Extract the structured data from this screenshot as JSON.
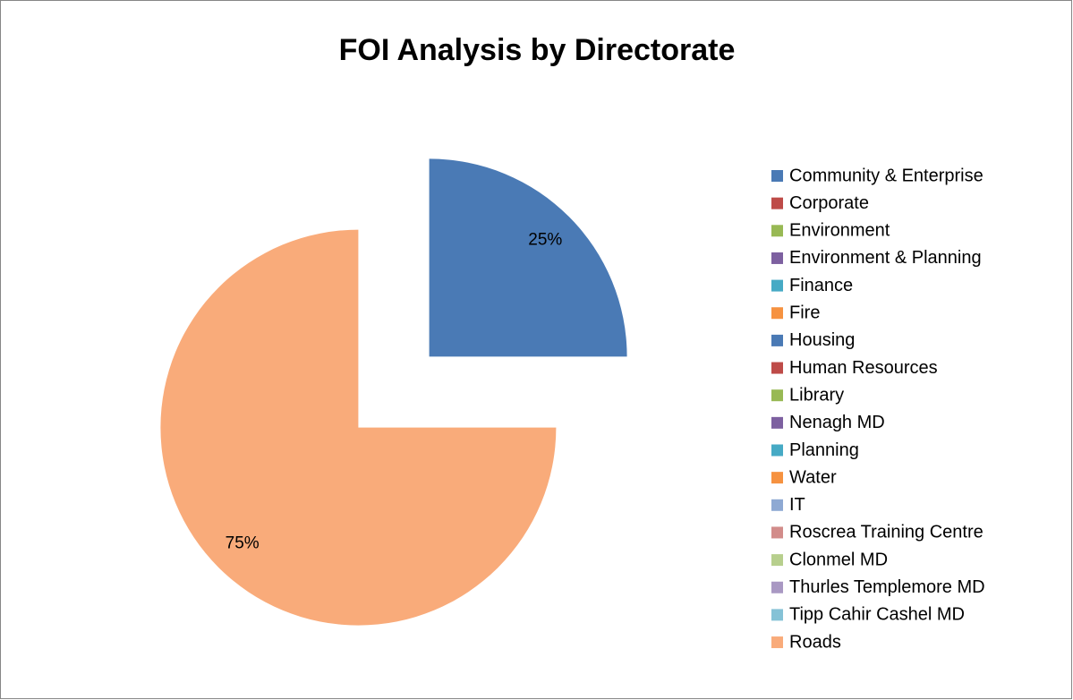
{
  "chart_data": {
    "type": "pie",
    "title": "FOI Analysis by Directorate",
    "categories": [
      "Community & Enterprise",
      "Corporate",
      "Environment",
      "Environment & Planning",
      "Finance",
      "Fire",
      "Housing",
      "Human Resources",
      "Library",
      "Nenagh MD",
      "Planning",
      "Water",
      "IT",
      "Roscrea Training Centre",
      "Clonmel MD",
      "Thurles Templemore MD",
      "Tipp Cahir Cashel MD",
      "Roads"
    ],
    "values": [
      25,
      0,
      0,
      0,
      0,
      0,
      0,
      0,
      0,
      0,
      0,
      0,
      0,
      0,
      0,
      0,
      0,
      75
    ],
    "value_labels": [
      "25%",
      null,
      null,
      null,
      null,
      null,
      null,
      null,
      null,
      null,
      null,
      null,
      null,
      null,
      null,
      null,
      null,
      "75%"
    ],
    "colors": [
      "#4a7ab5",
      "#be4b48",
      "#98b954",
      "#7d60a0",
      "#46aac5",
      "#f69240",
      "#4a7ab5",
      "#be4b48",
      "#98b954",
      "#7d60a0",
      "#46aac5",
      "#f69240",
      "#8ea9d3",
      "#d28c8a",
      "#b7cf8d",
      "#a998c3",
      "#85c2d6",
      "#f9ab7a"
    ],
    "legend": "right"
  }
}
